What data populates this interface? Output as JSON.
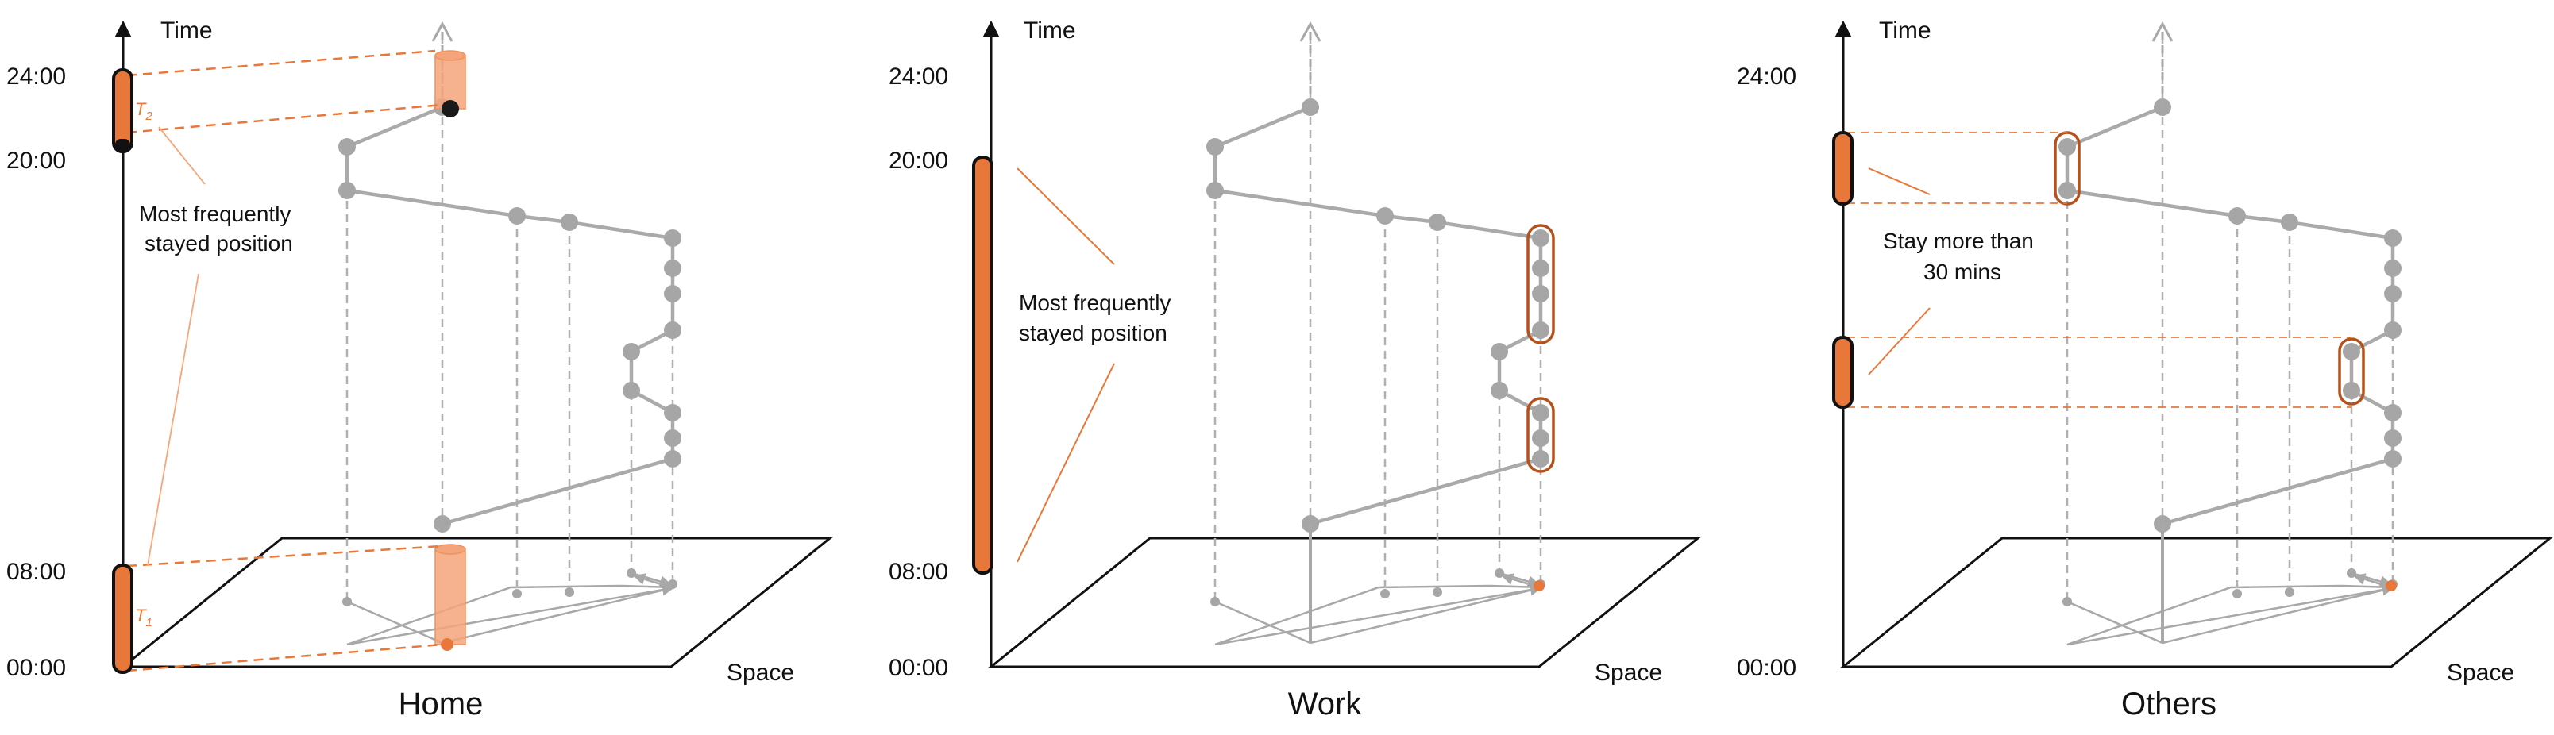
{
  "axis_labels": {
    "time": "Time",
    "space": "Space"
  },
  "panels": [
    {
      "caption": "Home",
      "ticks": [
        "24:00",
        "20:00",
        "08:00",
        "00:00"
      ],
      "annotation": [
        "Most frequently",
        "stayed position"
      ],
      "markers": [
        "T",
        "2",
        "T",
        "1"
      ]
    },
    {
      "caption": "Work",
      "ticks": [
        "24:00",
        "20:00",
        "08:00",
        "00:00"
      ],
      "annotation": [
        "Most frequently",
        "stayed position"
      ]
    },
    {
      "caption": "Others",
      "ticks": [
        "24:00",
        "00:00"
      ],
      "annotation": [
        "Stay more than",
        "30 mins"
      ]
    }
  ],
  "colors": {
    "accent": "#e8783a",
    "trajectory": "#a6a6a6",
    "outline": "#111111"
  }
}
